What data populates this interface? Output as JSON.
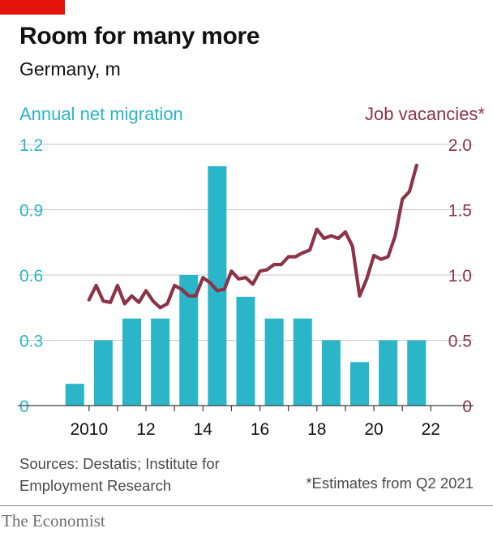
{
  "header": {
    "title": "Room for many more",
    "subtitle": "Germany, m",
    "left_series_label": "Annual net migration",
    "right_series_label": "Job vacancies*"
  },
  "footer": {
    "sources": "Sources: Destatis; Institute for Employment Research",
    "footnote": "*Estimates from Q2 2021",
    "brand": "The Economist"
  },
  "colors": {
    "brand_red": "#e3120b",
    "bars": "#2ab5c8",
    "line": "#8c3348",
    "grid": "#c9c9c9",
    "axis": "#3a3a3a"
  },
  "chart_data": {
    "type": "bar+line",
    "title": "Room for many more",
    "subtitle": "Germany, m",
    "x_tick_labels": [
      "2010",
      "12",
      "14",
      "16",
      "18",
      "20",
      "22"
    ],
    "x_range": [
      2007.5,
      2023.5
    ],
    "bars": {
      "name": "Annual net migration",
      "axis": "left",
      "ylim": [
        0,
        1.2
      ],
      "yticks": [
        "0",
        "0.3",
        "0.6",
        "0.9",
        "1.2"
      ],
      "categories": [
        2009,
        2010,
        2011,
        2012,
        2013,
        2014,
        2015,
        2016,
        2017,
        2018,
        2019,
        2020,
        2021
      ],
      "values": [
        0.1,
        0.3,
        0.4,
        0.4,
        0.6,
        1.1,
        0.5,
        0.4,
        0.4,
        0.3,
        0.2,
        0.3,
        0.3
      ]
    },
    "line": {
      "name": "Job vacancies*",
      "axis": "right",
      "ylim": [
        0,
        2.0
      ],
      "yticks": [
        "0",
        "0.5",
        "1.0",
        "1.5",
        "2.0"
      ],
      "points": [
        [
          2010.0,
          0.81
        ],
        [
          2010.25,
          0.92
        ],
        [
          2010.5,
          0.8
        ],
        [
          2010.75,
          0.79
        ],
        [
          2011.0,
          0.92
        ],
        [
          2011.25,
          0.78
        ],
        [
          2011.5,
          0.84
        ],
        [
          2011.75,
          0.79
        ],
        [
          2012.0,
          0.88
        ],
        [
          2012.25,
          0.8
        ],
        [
          2012.5,
          0.75
        ],
        [
          2012.75,
          0.78
        ],
        [
          2013.0,
          0.92
        ],
        [
          2013.25,
          0.89
        ],
        [
          2013.5,
          0.84
        ],
        [
          2013.75,
          0.84
        ],
        [
          2014.0,
          0.98
        ],
        [
          2014.25,
          0.94
        ],
        [
          2014.5,
          0.88
        ],
        [
          2014.75,
          0.89
        ],
        [
          2015.0,
          1.03
        ],
        [
          2015.25,
          0.97
        ],
        [
          2015.5,
          0.98
        ],
        [
          2015.75,
          0.93
        ],
        [
          2016.0,
          1.03
        ],
        [
          2016.25,
          1.04
        ],
        [
          2016.5,
          1.08
        ],
        [
          2016.75,
          1.08
        ],
        [
          2017.0,
          1.14
        ],
        [
          2017.25,
          1.14
        ],
        [
          2017.5,
          1.17
        ],
        [
          2017.75,
          1.19
        ],
        [
          2018.0,
          1.35
        ],
        [
          2018.25,
          1.28
        ],
        [
          2018.5,
          1.3
        ],
        [
          2018.75,
          1.28
        ],
        [
          2019.0,
          1.33
        ],
        [
          2019.25,
          1.22
        ],
        [
          2019.5,
          0.84
        ],
        [
          2019.75,
          0.97
        ],
        [
          2020.0,
          1.15
        ],
        [
          2020.25,
          1.12
        ],
        [
          2020.5,
          1.14
        ],
        [
          2020.75,
          1.3
        ],
        [
          2021.0,
          1.58
        ],
        [
          2021.25,
          1.64
        ],
        [
          2021.5,
          1.84
        ]
      ]
    }
  }
}
